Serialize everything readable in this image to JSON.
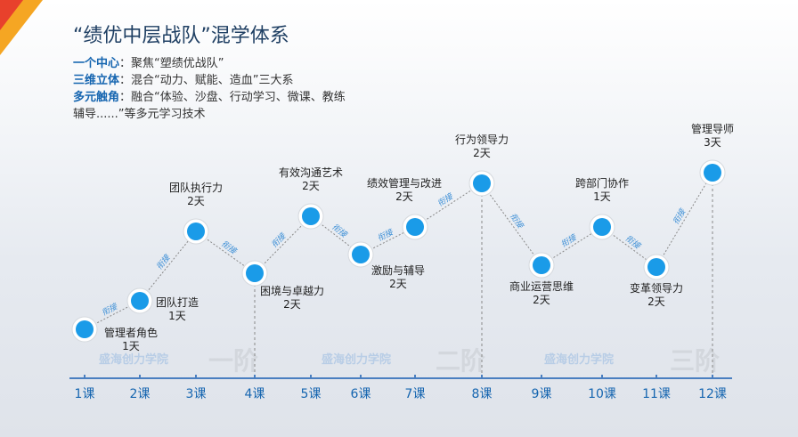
{
  "title": "“绩优中层战队”混学体系",
  "intro": [
    {
      "label": "一个中心",
      "text": "：聚焦“塑绩优战队”"
    },
    {
      "label": "三维立体",
      "text": "：混合“动力、赋能、造血”三大系"
    },
    {
      "label": "多元触角",
      "text": "：融合“体验、沙盘、行动学习、微课、教练辅导......”等多元学习技术"
    }
  ],
  "courses": [
    {
      "axis_label": "1课",
      "name": "管理者角色",
      "duration": "1天"
    },
    {
      "axis_label": "2课",
      "name": "团队打造",
      "duration": "1天"
    },
    {
      "axis_label": "3课",
      "name": "团队执行力",
      "duration": "2天"
    },
    {
      "axis_label": "4课",
      "name": "困境与卓越力",
      "duration": "2天"
    },
    {
      "axis_label": "5课",
      "name": "有效沟通艺术",
      "duration": "2天"
    },
    {
      "axis_label": "6课",
      "name": "激励与辅导",
      "duration": "2天"
    },
    {
      "axis_label": "7课",
      "name": "绩效管理与改进",
      "duration": "2天"
    },
    {
      "axis_label": "8课",
      "name": "行为领导力",
      "duration": "2天"
    },
    {
      "axis_label": "9课",
      "name": "商业运营思维",
      "duration": "2天"
    },
    {
      "axis_label": "10课",
      "name": "跨部门协作",
      "duration": "1天"
    },
    {
      "axis_label": "11课",
      "name": "变革领导力",
      "duration": "2天"
    },
    {
      "axis_label": "12课",
      "name": "管理导师",
      "duration": "3天"
    }
  ],
  "link_label": "衔接",
  "stages": [
    "一阶",
    "二阶",
    "三阶"
  ],
  "watermark": "盛海创力学院"
}
